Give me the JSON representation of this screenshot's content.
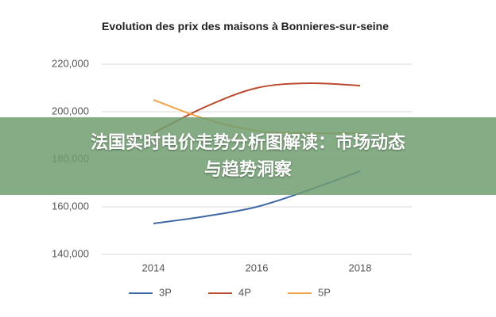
{
  "chart_data": {
    "type": "line",
    "title": "Evolution des prix des maisons à Bonnieres-sur-seine",
    "x": [
      2014,
      2015,
      2016,
      2017,
      2018
    ],
    "series": [
      {
        "name": "3P",
        "color": "#3f67a5",
        "values": [
          153000,
          156000,
          160000,
          167000,
          175000
        ]
      },
      {
        "name": "4P",
        "color": "#bb4b2e",
        "values": [
          191000,
          202000,
          210000,
          212000,
          211000
        ]
      },
      {
        "name": "5P",
        "color": "#f0a347",
        "values": [
          205000,
          197000,
          192000,
          191000,
          191000
        ]
      }
    ],
    "xlim": [
      2013,
      2019
    ],
    "xticks": [
      2014,
      2016,
      2018
    ],
    "ylim": [
      140000,
      220000
    ],
    "yticks": [
      {
        "value": 140000,
        "label": "140,000"
      },
      {
        "value": 160000,
        "label": "160,000"
      },
      {
        "value": 180000,
        "label": "180,000"
      },
      {
        "value": 200000,
        "label": "200,000"
      },
      {
        "value": 220000,
        "label": "220,000"
      }
    ],
    "grid": true,
    "legend": "bottom"
  },
  "banner": {
    "lines": [
      "法国实时电价走势分析图解读：市场动态",
      "与趋势洞察"
    ]
  }
}
